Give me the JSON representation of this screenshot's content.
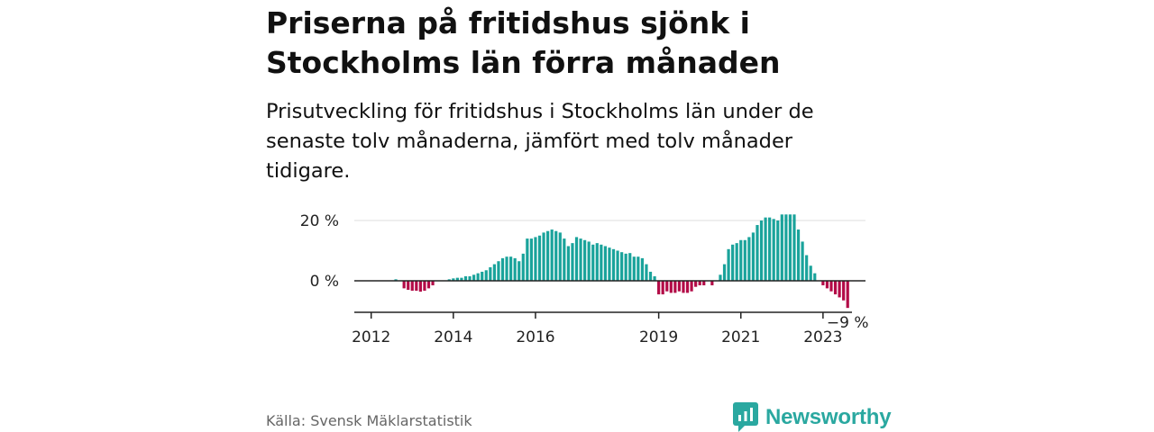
{
  "title": "Priserna på fritidshus sjönk i Stockholms län förra månaden",
  "subtitle": "Prisutveckling för fritidshus i Stockholms län under de senaste tolv månaderna, jämfört med tolv månader tidigare.",
  "source": "Källa: Svensk Mäklarstatistik",
  "brand": "Newsworthy",
  "colors": {
    "positive": "#1aa39b",
    "negative": "#b30b47",
    "brand": "#2aa8a0",
    "grid": "#dddddd",
    "axis": "#222222"
  },
  "chart_data": {
    "type": "bar",
    "ylabel": "",
    "ylim": [
      -10,
      22
    ],
    "y_ticks": [
      {
        "value": 0,
        "label": "0 %"
      },
      {
        "value": 20,
        "label": "20 %"
      }
    ],
    "x_start": "2011-11",
    "x_ticks": [
      {
        "index": 2,
        "label": "2012"
      },
      {
        "index": 22,
        "label": "2014"
      },
      {
        "index": 42,
        "label": "2016"
      },
      {
        "index": 72,
        "label": "2019"
      },
      {
        "index": 92,
        "label": "2021"
      },
      {
        "index": 112,
        "label": "2023"
      }
    ],
    "values": [
      0,
      0,
      0,
      0,
      0,
      0,
      0,
      0,
      0.5,
      0,
      -2.5,
      -3,
      -3.3,
      -3.3,
      -3.6,
      -3.3,
      -2.5,
      -1.5,
      0,
      0,
      0,
      0.5,
      0.8,
      1,
      1,
      1.5,
      1.5,
      2,
      2.5,
      3,
      3.5,
      4.5,
      5.5,
      6.5,
      7.5,
      8,
      8,
      7.5,
      6.5,
      9,
      14,
      14,
      14.5,
      15,
      16,
      16.5,
      17,
      16.5,
      16,
      14,
      11.5,
      12.5,
      14.5,
      14,
      13.5,
      13,
      12,
      12.5,
      12,
      11.5,
      11,
      10.5,
      10,
      9.5,
      9,
      9.2,
      8,
      8,
      7.5,
      5.5,
      3,
      1.5,
      -4.5,
      -4.5,
      -3.5,
      -4,
      -4,
      -3.5,
      -4,
      -4,
      -3.5,
      -2,
      -1.5,
      -1.5,
      0,
      -1.5,
      0,
      2,
      5.5,
      10.5,
      12,
      12.5,
      13.5,
      13.5,
      14.5,
      16,
      18.5,
      20,
      21,
      21,
      20.5,
      20,
      22,
      22,
      22,
      22,
      17,
      13,
      8.5,
      5,
      2.5,
      0,
      -1.5,
      -2.5,
      -3.5,
      -4.5,
      -5.5,
      -6.5,
      -9
    ],
    "last_value_label": "−9 %"
  }
}
